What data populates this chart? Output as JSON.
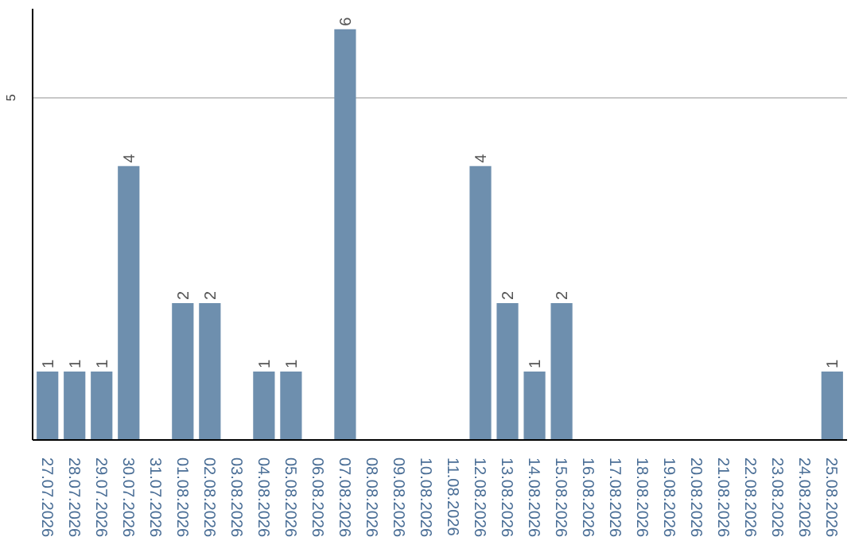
{
  "chart_data": {
    "type": "bar",
    "categories": [
      "27.07.2026",
      "28.07.2026",
      "29.07.2026",
      "30.07.2026",
      "31.07.2026",
      "01.08.2026",
      "02.08.2026",
      "03.08.2026",
      "04.08.2026",
      "05.08.2026",
      "06.08.2026",
      "07.08.2026",
      "08.08.2026",
      "09.08.2026",
      "10.08.2026",
      "11.08.2026",
      "12.08.2026",
      "13.08.2026",
      "14.08.2026",
      "15.08.2026",
      "16.08.2026",
      "17.08.2026",
      "18.08.2026",
      "19.08.2026",
      "20.08.2026",
      "21.08.2026",
      "22.08.2026",
      "23.08.2026",
      "24.08.2026",
      "25.08.2026"
    ],
    "values": [
      1,
      1,
      1,
      4,
      0,
      2,
      2,
      0,
      1,
      1,
      0,
      6,
      0,
      0,
      0,
      0,
      4,
      2,
      1,
      2,
      0,
      0,
      0,
      0,
      0,
      0,
      0,
      0,
      0,
      1
    ],
    "value_labels": [
      "1",
      "1",
      "1",
      "4",
      null,
      "2",
      "2",
      null,
      "1",
      "1",
      null,
      "6",
      null,
      null,
      null,
      null,
      "4",
      "2",
      "1",
      "2",
      null,
      null,
      null,
      null,
      null,
      null,
      null,
      null,
      null,
      "1"
    ],
    "color": "#6e8fae",
    "ylim": [
      0,
      6.3
    ],
    "yticks": [
      5
    ],
    "grid": "y"
  }
}
